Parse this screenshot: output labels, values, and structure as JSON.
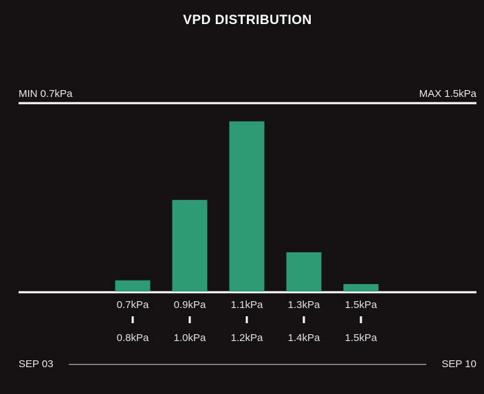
{
  "chart_data": {
    "type": "bar",
    "title": "VPD DISTRIBUTION",
    "min_label": "MIN 0.7kPa",
    "max_label": "MAX 1.5kPa",
    "start_date": "SEP 03",
    "end_date": "SEP 10",
    "categories": [
      null,
      null,
      "0.7kPa",
      "0.9kPa",
      "1.1kPa",
      "1.3kPa",
      "1.5kPa",
      null,
      null
    ],
    "category_ends": [
      null,
      null,
      "0.8kPa",
      "1.0kPa",
      "1.2kPa",
      "1.4kPa",
      "1.5kPa",
      null,
      null
    ],
    "values": [
      null,
      null,
      6,
      49,
      91,
      21,
      4,
      null,
      null
    ],
    "color": "#2f9b74",
    "ylim": [
      0,
      100
    ]
  }
}
